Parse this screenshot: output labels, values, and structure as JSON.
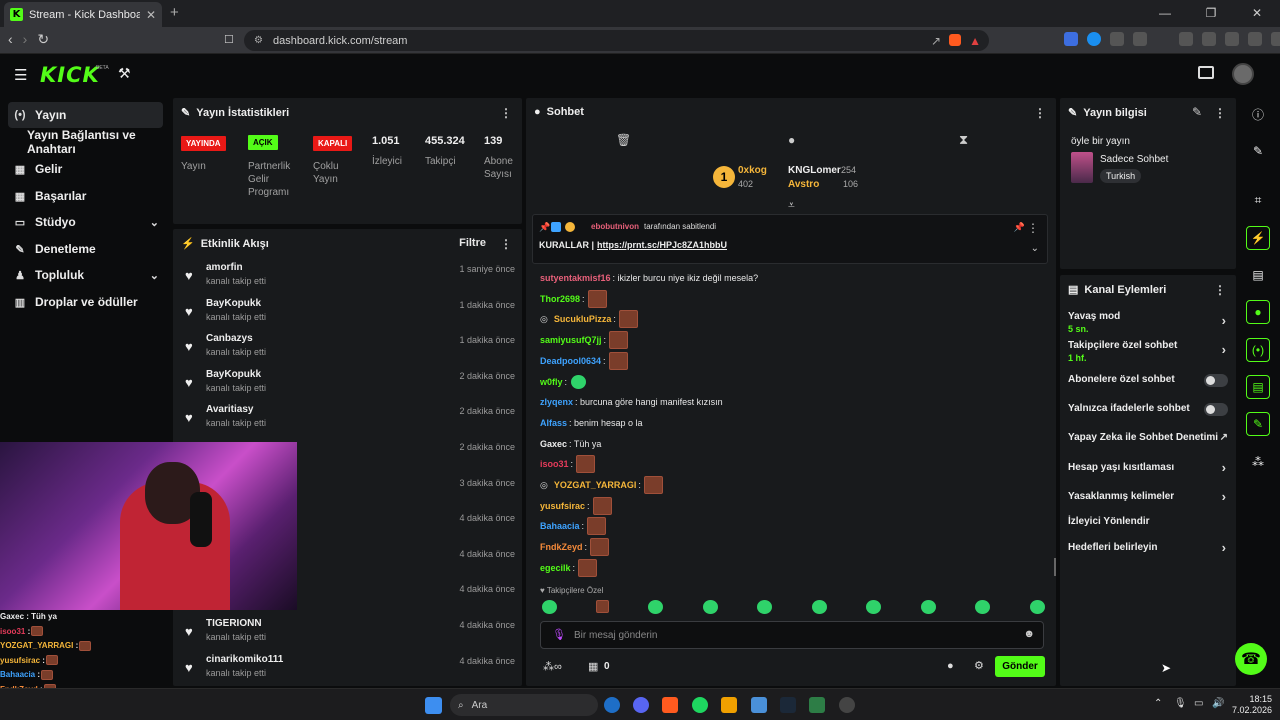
{
  "browser": {
    "tab_title": "Stream - Kick Dashboard",
    "tab_fav": "K",
    "url": "dashboard.kick.com/stream"
  },
  "header": {
    "logo": "KICK",
    "beta": "BETA"
  },
  "sidebar": {
    "items": [
      {
        "label": "Yayın",
        "icon": "(•)"
      },
      {
        "label": "Yayın Bağlantısı ve Anahtarı"
      },
      {
        "label": "Gelir",
        "icon": "▤"
      },
      {
        "label": "Başarılar",
        "icon": "▤"
      },
      {
        "label": "Stüdyo",
        "icon": "▭"
      },
      {
        "label": "Denetleme",
        "icon": "✎"
      },
      {
        "label": "Topluluk",
        "icon": "♟"
      },
      {
        "label": "Droplar ve ödüller",
        "icon": "▥"
      }
    ]
  },
  "stats": {
    "title": "Yayın İstatistikleri",
    "badges": [
      {
        "text": "YAYINDA",
        "label": "Yayın",
        "color": "#e91916",
        "fg": "#fff"
      },
      {
        "text": "AÇIK",
        "label": "Partnerlik Gelir Programı",
        "color": "#53fc18",
        "fg": "#000"
      },
      {
        "text": "KAPALI",
        "label": "Çoklu Yayın",
        "color": "#e91916",
        "fg": "#fff"
      }
    ],
    "numbers": [
      {
        "value": "1.051",
        "label": "İzleyici"
      },
      {
        "value": "455.324",
        "label": "Takipçi"
      },
      {
        "value": "139",
        "label": "Abone Sayısı"
      }
    ]
  },
  "activity": {
    "title": "Etkinlik Akışı",
    "filter": "Filtre",
    "rows": [
      {
        "name": "amorfin",
        "sub": "kanalı takip etti",
        "time": "1 saniye önce"
      },
      {
        "name": "BayKopukk",
        "sub": "kanalı takip etti",
        "time": "1 dakika önce"
      },
      {
        "name": "Canbazys",
        "sub": "kanalı takip etti",
        "time": "1 dakika önce"
      },
      {
        "name": "BayKopukk",
        "sub": "kanalı takip etti",
        "time": "2 dakika önce"
      },
      {
        "name": "Avaritiasy",
        "sub": "kanalı takip etti",
        "time": "2 dakika önce"
      },
      {
        "name": "",
        "sub": "",
        "time": "2 dakika önce"
      },
      {
        "name": "",
        "sub": "",
        "time": "3 dakika önce"
      },
      {
        "name": "",
        "sub": "",
        "time": "4 dakika önce"
      },
      {
        "name": "",
        "sub": "",
        "time": "4 dakika önce"
      },
      {
        "name": "",
        "sub": "",
        "time": "4 dakika önce"
      },
      {
        "name": "TIGERIONN",
        "sub": "kanalı takip etti",
        "time": "4 dakika önce"
      },
      {
        "name": "cinarikomiko111",
        "sub": "kanalı takip etti",
        "time": "4 dakika önce"
      }
    ]
  },
  "cam_chat": [
    {
      "u": "Gaxec",
      "t": " : Tüh ya",
      "c": "#eee"
    },
    {
      "u": "isoo31",
      "t": " :",
      "c": "#e53b5a"
    },
    {
      "u": "YOZGAT_YARRAGI",
      "t": " :",
      "c": "#f5b63a"
    },
    {
      "u": "yusufsirac",
      "t": " :",
      "c": "#f5b63a"
    },
    {
      "u": "Bahaacia",
      "t": " :",
      "c": "#3ea3ff"
    },
    {
      "u": "FndkZeyd",
      "t": " :",
      "c": "#f58a3a"
    }
  ],
  "chat": {
    "title": "Sohbet",
    "leaders": [
      {
        "name": "0xkog",
        "value": "402",
        "color": "#f5b63a"
      },
      {
        "name": "KNGLomer",
        "value": "254",
        "color": "#eee"
      },
      {
        "name": "Avstro",
        "value": "106",
        "color": "#f5b63a"
      }
    ],
    "leader_rank": "1",
    "pinned_by": "ebobutnivon",
    "pinned_suffix": "tarafından sabitlendi",
    "pinned_label": "KURALLAR |",
    "pinned_link": "https://prnt.sc/HPJc8ZA1hbbU",
    "messages": [
      {
        "u": "sutyentakmisf16",
        "c": "#e8607a",
        "t": ": ikizler burcu niye ikiz değil mesela?"
      },
      {
        "u": "Thor2698",
        "c": "#53fc18",
        "t": ":",
        "e": "b"
      },
      {
        "u": "SucukluPizza",
        "c": "#f5b63a",
        "t": ":",
        "e": "b",
        "badge": true
      },
      {
        "u": "samiyusufQ7jj",
        "c": "#53fc18",
        "t": ":",
        "e": "b"
      },
      {
        "u": "Deadpool0634",
        "c": "#3ea3ff",
        "t": ":",
        "e": "b"
      },
      {
        "u": "w0fly",
        "c": "#53fc18",
        "t": ":",
        "e": "g"
      },
      {
        "u": "zlyqenx",
        "c": "#3ea3ff",
        "t": ": burcuna göre hangi manifest kızısın"
      },
      {
        "u": "Alfass",
        "c": "#3ea3ff",
        "t": ": benim hesap o la"
      },
      {
        "u": "Gaxec",
        "c": "#eee",
        "t": ": Tüh ya"
      },
      {
        "u": "isoo31",
        "c": "#e53b5a",
        "t": ":",
        "e": "b"
      },
      {
        "u": "YOZGAT_YARRAGI",
        "c": "#f5b63a",
        "t": ":",
        "e": "b",
        "badge": true
      },
      {
        "u": "yusufsirac",
        "c": "#f5b63a",
        "t": ":",
        "e": "b"
      },
      {
        "u": "Bahaacia",
        "c": "#3ea3ff",
        "t": ":",
        "e": "b"
      },
      {
        "u": "FndkZeyd",
        "c": "#f58a3a",
        "t": ":",
        "e": "b"
      },
      {
        "u": "egecilk",
        "c": "#53fc18",
        "t": ":",
        "e": "b"
      }
    ],
    "followers_only": "Takipçilere Özel",
    "placeholder": "Bir mesaj gönderin",
    "points": "0",
    "send": "Gönder"
  },
  "info": {
    "title": "Yayın bilgisi",
    "stream_title": "öyle bir yayın",
    "category": "Sadece Sohbet",
    "language": "Turkish"
  },
  "actions": {
    "title": "Kanal Eylemleri",
    "items": [
      {
        "label": "Yavaş mod",
        "sub": "5 sn.",
        "type": "arrow"
      },
      {
        "label": "Takipçilere özel sohbet",
        "sub": "1 hf.",
        "type": "arrow"
      },
      {
        "label": "Abonelere özel sohbet",
        "type": "toggle"
      },
      {
        "label": "Yalnızca ifadelerle sohbet",
        "type": "toggle"
      },
      {
        "label": "Yapay Zeka ile Sohbet Denetimi",
        "type": "ext"
      },
      {
        "label": "Hesap yaşı kısıtlaması",
        "type": "arrow"
      },
      {
        "label": "Yasaklanmış kelimeler",
        "type": "arrow"
      },
      {
        "label": "İzleyici Yönlendir",
        "type": "none"
      },
      {
        "label": "Hedefleri belirleyin",
        "type": "arrow"
      }
    ]
  },
  "taskbar": {
    "search": "Ara",
    "time": "18:15",
    "date": "7.02.2026"
  }
}
